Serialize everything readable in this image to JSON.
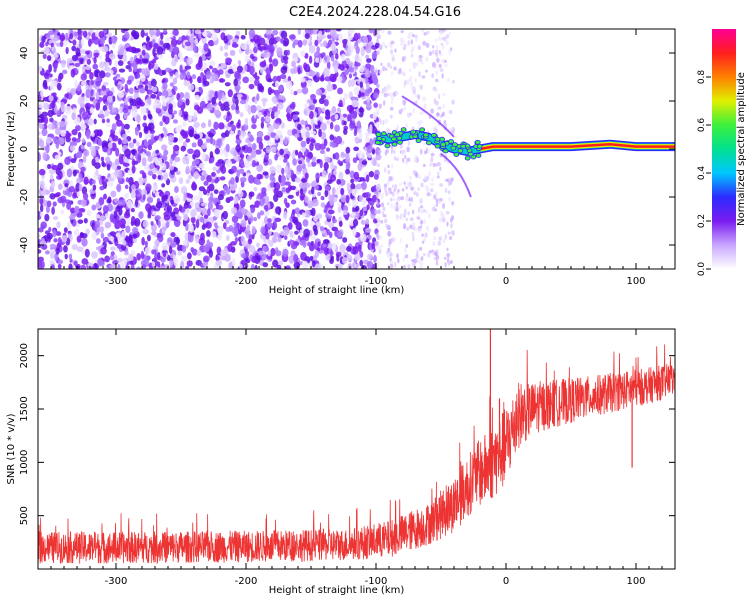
{
  "title": "C2E4.2024.228.04.54.G16",
  "chart_data": [
    {
      "type": "heatmap",
      "xlabel": "Height of straight line (km)",
      "ylabel": "Frequency (Hz)",
      "xlim": [
        -360,
        130
      ],
      "ylim": [
        -50,
        50
      ],
      "xticks": [
        -300,
        -200,
        -100,
        0,
        100
      ],
      "yticks": [
        -40,
        -20,
        0,
        20,
        40
      ],
      "colorbar": {
        "label": "Normalized spectral amplitude",
        "range": [
          0,
          1
        ],
        "ticks": [
          "0.0",
          "0.2",
          "0.4",
          "0.6",
          "0.8"
        ],
        "colors": [
          "#ffffff",
          "#c9a6ff",
          "#7a1cf0",
          "#2b2bff",
          "#00c8ff",
          "#00e090",
          "#3cf03c",
          "#e0f000",
          "#ff8000",
          "#ff1e1e",
          "#ff0096"
        ]
      },
      "signal_track": {
        "description_free": true,
        "points": [
          {
            "x": -100,
            "f": 5
          },
          {
            "x": -90,
            "f": 4
          },
          {
            "x": -80,
            "f": 5
          },
          {
            "x": -70,
            "f": 6
          },
          {
            "x": -60,
            "f": 5
          },
          {
            "x": -50,
            "f": 2
          },
          {
            "x": -40,
            "f": 0
          },
          {
            "x": -30,
            "f": -1
          },
          {
            "x": -20,
            "f": 0
          },
          {
            "x": -10,
            "f": 1
          },
          {
            "x": 0,
            "f": 1
          },
          {
            "x": 20,
            "f": 1
          },
          {
            "x": 50,
            "f": 1
          },
          {
            "x": 80,
            "f": 2
          },
          {
            "x": 100,
            "f": 1
          },
          {
            "x": 130,
            "f": 1
          }
        ]
      }
    },
    {
      "type": "line",
      "xlabel": "Height of straight line (km)",
      "ylabel": "SNR (10 * v/v)",
      "xlim": [
        -360,
        130
      ],
      "ylim": [
        0,
        2250
      ],
      "xticks": [
        -300,
        -200,
        -100,
        0,
        100
      ],
      "yticks": [
        500,
        1000,
        1500,
        2000
      ],
      "color": "#ee3333",
      "trend": {
        "x": [
          -360,
          -300,
          -200,
          -120,
          -90,
          -60,
          -40,
          -25,
          -10,
          0,
          10,
          25,
          50,
          80,
          110,
          130
        ],
        "y": [
          200,
          200,
          210,
          230,
          280,
          420,
          600,
          850,
          1000,
          1150,
          1450,
          1520,
          1580,
          1650,
          1720,
          1780
        ]
      },
      "noise_amplitude": {
        "x": [
          -360,
          -120,
          -60,
          -20,
          0,
          20,
          60,
          130
        ],
        "y": [
          150,
          150,
          200,
          320,
          380,
          250,
          200,
          160
        ]
      },
      "spikes": [
        {
          "x": -12,
          "y": 2250
        },
        {
          "x": -5,
          "y": 1600
        },
        {
          "x": 97,
          "y": 950
        }
      ]
    }
  ]
}
